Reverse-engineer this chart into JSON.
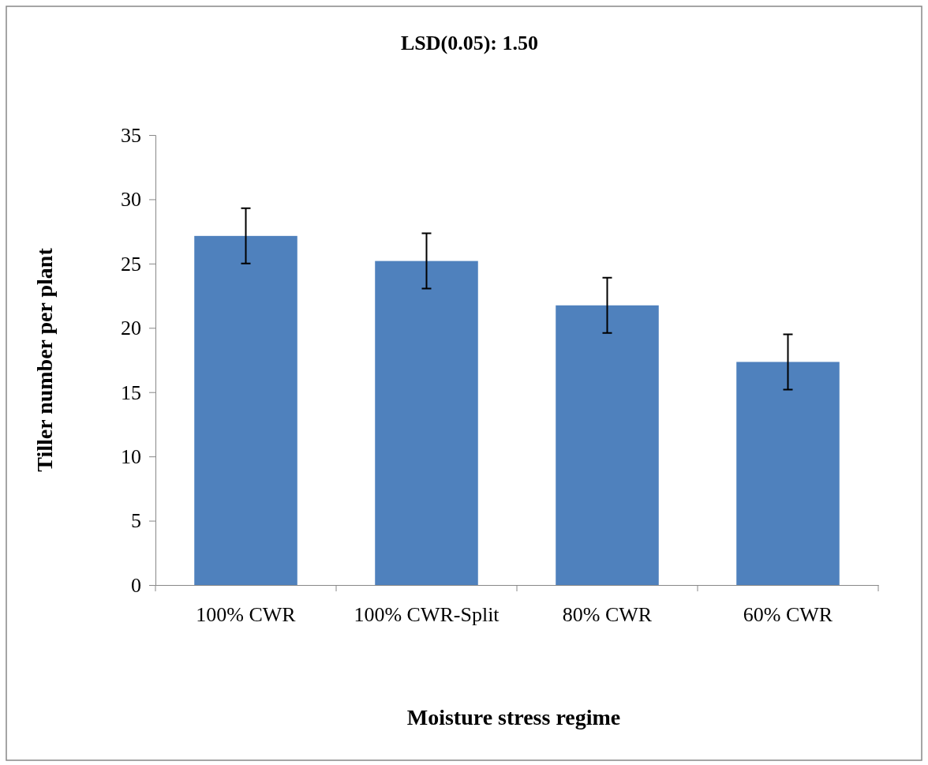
{
  "chart_data": {
    "type": "bar",
    "title": "LSD(0.05): 1.50",
    "xlabel": "Moisture stress regime",
    "ylabel": "Tiller number per plant",
    "categories": [
      "100% CWR",
      "100% CWR-Split",
      "80% CWR",
      "60% CWR"
    ],
    "values": [
      27.15,
      25.2,
      21.75,
      17.35
    ],
    "errors": [
      2.15,
      2.15,
      2.15,
      2.15
    ],
    "color": "#4f81bd",
    "ylim": [
      0,
      35
    ],
    "yticks": [
      0,
      5,
      10,
      15,
      20,
      25,
      30,
      35
    ],
    "grid": false
  }
}
